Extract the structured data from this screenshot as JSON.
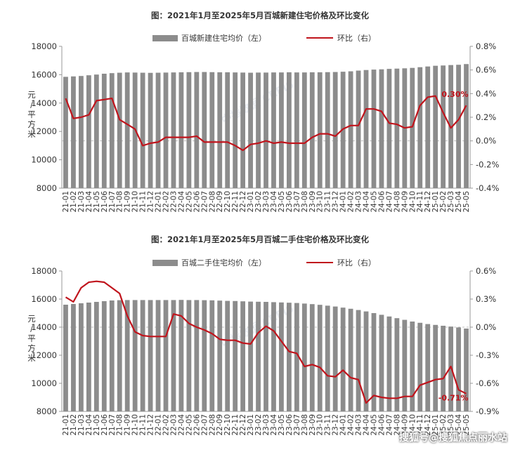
{
  "watermark": "搜狐号@搜狐焦点丽水站",
  "chart_brand_watermark": "中指数据 CREIS",
  "months": [
    "21-01",
    "21-02",
    "21-03",
    "21-04",
    "21-05",
    "21-06",
    "21-07",
    "21-08",
    "21-09",
    "21-10",
    "21-11",
    "21-12",
    "22-01",
    "22-02",
    "22-03",
    "22-04",
    "22-05",
    "22-06",
    "22-07",
    "22-08",
    "22-09",
    "22-10",
    "22-11",
    "22-12",
    "23-01",
    "23-02",
    "23-03",
    "23-04",
    "23-05",
    "23-06",
    "23-07",
    "23-08",
    "23-09",
    "23-10",
    "23-11",
    "23-12",
    "24-01",
    "24-02",
    "24-03",
    "24-04",
    "24-05",
    "24-06",
    "24-07",
    "24-08",
    "24-09",
    "24-10",
    "24-11",
    "24-12",
    "25-01",
    "25-02",
    "25-03",
    "25-04",
    "25-05"
  ],
  "colors": {
    "bar": "#8c8c8c",
    "line": "#c0141c",
    "axis": "#999999",
    "text": "#333333",
    "ref": "#bfbfbf"
  },
  "chart_data": [
    {
      "type": "bar+line",
      "title": "图：2021年1月至2025年5月百城新建住宅价格及环比变化",
      "ylabel": "元/平方米",
      "ylim": [
        8000,
        18000
      ],
      "y_ticks": [
        "8000",
        "10000",
        "12000",
        "14000",
        "16000",
        "18000"
      ],
      "y2lim": [
        -0.4,
        0.8
      ],
      "y2_ticks": [
        "-0.4%",
        "-0.2%",
        "0.0%",
        "0.2%",
        "0.4%",
        "0.6%",
        "0.8%"
      ],
      "legend_position": "top-center",
      "grid": false,
      "series": [
        {
          "name": "百城新建住宅均价（左）",
          "type": "bar",
          "axis": "left",
          "values": [
            15850,
            15880,
            15910,
            15960,
            16010,
            16070,
            16110,
            16140,
            16160,
            16150,
            16140,
            16130,
            16140,
            16150,
            16160,
            16170,
            16180,
            16190,
            16190,
            16180,
            16170,
            16170,
            16160,
            16150,
            16140,
            16150,
            16150,
            16160,
            16160,
            16170,
            16160,
            16160,
            16170,
            16170,
            16180,
            16190,
            16210,
            16240,
            16290,
            16330,
            16360,
            16380,
            16410,
            16430,
            16450,
            16480,
            16530,
            16580,
            16630,
            16650,
            16680,
            16700,
            16750
          ]
        },
        {
          "name": "环比（右）",
          "type": "line",
          "axis": "right",
          "values": [
            0.36,
            0.19,
            0.2,
            0.22,
            0.34,
            0.35,
            0.36,
            0.18,
            0.14,
            0.1,
            -0.04,
            -0.02,
            -0.01,
            0.03,
            0.03,
            0.03,
            0.03,
            0.04,
            -0.01,
            -0.01,
            -0.01,
            -0.01,
            -0.04,
            -0.08,
            -0.03,
            -0.02,
            0.0,
            -0.02,
            -0.01,
            -0.02,
            -0.02,
            -0.02,
            0.03,
            0.06,
            0.06,
            0.04,
            0.1,
            0.13,
            0.13,
            0.27,
            0.27,
            0.25,
            0.15,
            0.14,
            0.11,
            0.12,
            0.3,
            0.37,
            0.38,
            0.24,
            0.11,
            0.18,
            0.3
          ]
        }
      ],
      "annotation": {
        "text": "0.30%",
        "month": "25-05",
        "value": 0.3
      }
    },
    {
      "type": "bar+line",
      "title": "图：2021年1月至2025年5月百城二手住宅价格及环比变化",
      "ylabel": "元/平方米",
      "ylim": [
        8000,
        18000
      ],
      "y_ticks": [
        "8000",
        "10000",
        "12000",
        "14000",
        "16000",
        "18000"
      ],
      "y2lim": [
        -0.9,
        0.6
      ],
      "y2_ticks": [
        "-0.9%",
        "-0.6%",
        "-0.3%",
        "0.0%",
        "0.3%",
        "0.6%"
      ],
      "legend_position": "top-center",
      "grid": false,
      "series": [
        {
          "name": "百城二手住宅均价（左）",
          "type": "bar",
          "axis": "left",
          "values": [
            15600,
            15650,
            15700,
            15750,
            15800,
            15850,
            15900,
            15920,
            15930,
            15930,
            15930,
            15930,
            15930,
            15930,
            15930,
            15940,
            15930,
            15930,
            15920,
            15910,
            15890,
            15870,
            15860,
            15840,
            15820,
            15810,
            15800,
            15780,
            15760,
            15740,
            15720,
            15680,
            15640,
            15590,
            15530,
            15470,
            15390,
            15310,
            15220,
            15120,
            15000,
            14880,
            14760,
            14640,
            14520,
            14400,
            14310,
            14220,
            14160,
            14100,
            14040,
            13980,
            13900
          ]
        },
        {
          "name": "环比（右）",
          "type": "line",
          "axis": "right",
          "values": [
            0.32,
            0.27,
            0.42,
            0.48,
            0.49,
            0.48,
            0.42,
            0.36,
            0.12,
            -0.05,
            -0.09,
            -0.1,
            -0.1,
            -0.1,
            0.14,
            0.12,
            0.04,
            0.0,
            -0.03,
            -0.07,
            -0.13,
            -0.14,
            -0.14,
            -0.17,
            -0.18,
            -0.06,
            0.01,
            -0.04,
            -0.15,
            -0.26,
            -0.28,
            -0.42,
            -0.4,
            -0.43,
            -0.52,
            -0.53,
            -0.46,
            -0.54,
            -0.56,
            -0.81,
            -0.73,
            -0.75,
            -0.76,
            -0.76,
            -0.74,
            -0.74,
            -0.62,
            -0.59,
            -0.56,
            -0.55,
            -0.42,
            -0.67,
            -0.71
          ]
        }
      ],
      "annotation": {
        "text": "-0.71%",
        "month": "25-05",
        "value": -0.71
      }
    }
  ]
}
